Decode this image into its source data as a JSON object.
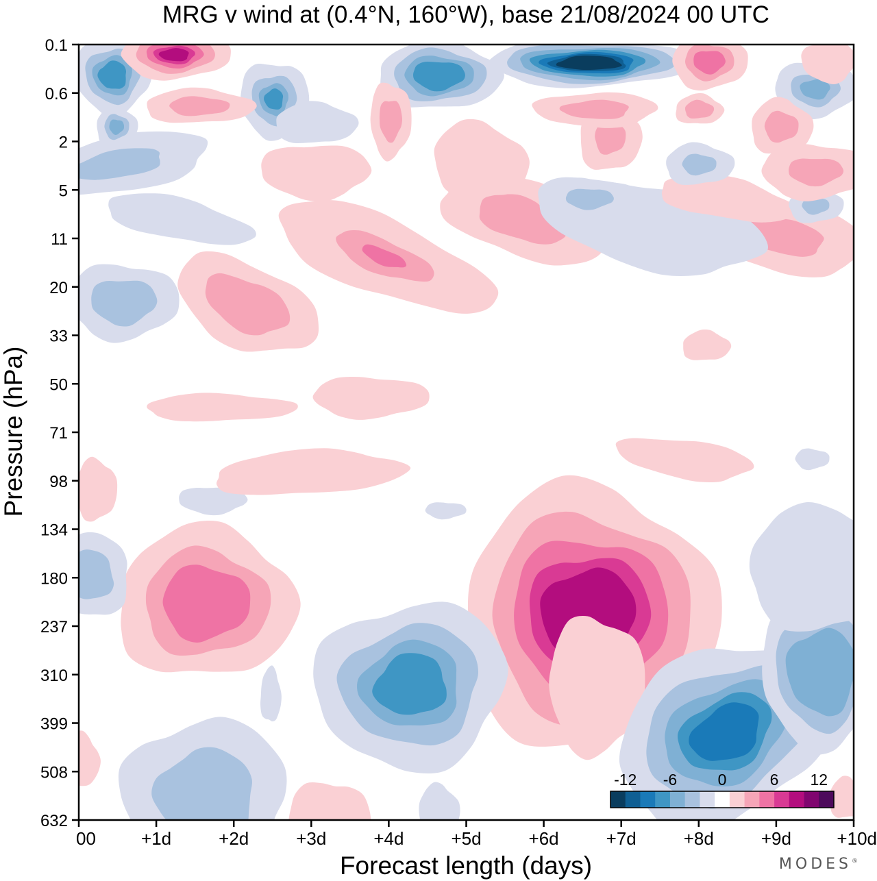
{
  "title": "MRG v wind at (0.4°N, 160°W),  base 21/08/2024  00 UTC",
  "brand": "MODES",
  "chart_data": {
    "type": "heatmap",
    "title": "MRG v wind at (0.4°N, 160°W),  base 21/08/2024  00 UTC",
    "xlabel": "Forecast length (days)",
    "ylabel": "Pressure (hPa)",
    "x_ticks": [
      "00",
      "+1d",
      "+2d",
      "+3d",
      "+4d",
      "+5d",
      "+6d",
      "+7d",
      "+8d",
      "+9d",
      "+10d"
    ],
    "y_ticks": [
      "0.1",
      "0.6",
      "2",
      "5",
      "11",
      "20",
      "33",
      "50",
      "71",
      "98",
      "134",
      "180",
      "237",
      "310",
      "399",
      "508",
      "632"
    ],
    "xlim": [
      0,
      10
    ],
    "y_direction": "pressure increasing downward",
    "colorbar": {
      "ticks": [
        "-12",
        "-6",
        "0",
        "6",
        "12"
      ],
      "levels": [
        -15,
        -13,
        -11,
        -9,
        -7,
        -5,
        -3,
        -1,
        1,
        3,
        5,
        7,
        9,
        11,
        13,
        15
      ],
      "colors": [
        "#0a3d5e",
        "#0f5f93",
        "#1a7ab8",
        "#3f96c4",
        "#7fb0d4",
        "#a9c2df",
        "#d8dcec",
        "#ffffff",
        "#fad0d4",
        "#f6a5b7",
        "#ef73a4",
        "#d93a94",
        "#b30d7e",
        "#80056f",
        "#4d0a5c"
      ],
      "legend_position": "bottom-right"
    },
    "features": [
      {
        "sign": "positive",
        "x_days": 6.5,
        "pressure_hPa": 180,
        "peak_ms": 12
      },
      {
        "sign": "positive",
        "x_days": 1.6,
        "pressure_hPa": 210,
        "peak_ms": 7
      },
      {
        "sign": "negative",
        "x_days": 4.5,
        "pressure_hPa": 300,
        "peak_ms": -7
      },
      {
        "sign": "negative",
        "x_days": 8.1,
        "pressure_hPa": 500,
        "peak_ms": -9
      },
      {
        "sign": "negative",
        "x_days": 6.5,
        "pressure_hPa": 0.25,
        "peak_ms": -15
      },
      {
        "sign": "positive",
        "x_days": 1.1,
        "pressure_hPa": 0.15,
        "peak_ms": 13
      },
      {
        "sign": "positive",
        "x_days": 4.0,
        "pressure_hPa": 17,
        "peak_ms": 7
      },
      {
        "sign": "negative",
        "x_days": 0.4,
        "pressure_hPa": 0.3,
        "peak_ms": -9
      }
    ],
    "grid": false
  },
  "colors": {
    "axis": "#000000",
    "background": "#ffffff"
  }
}
